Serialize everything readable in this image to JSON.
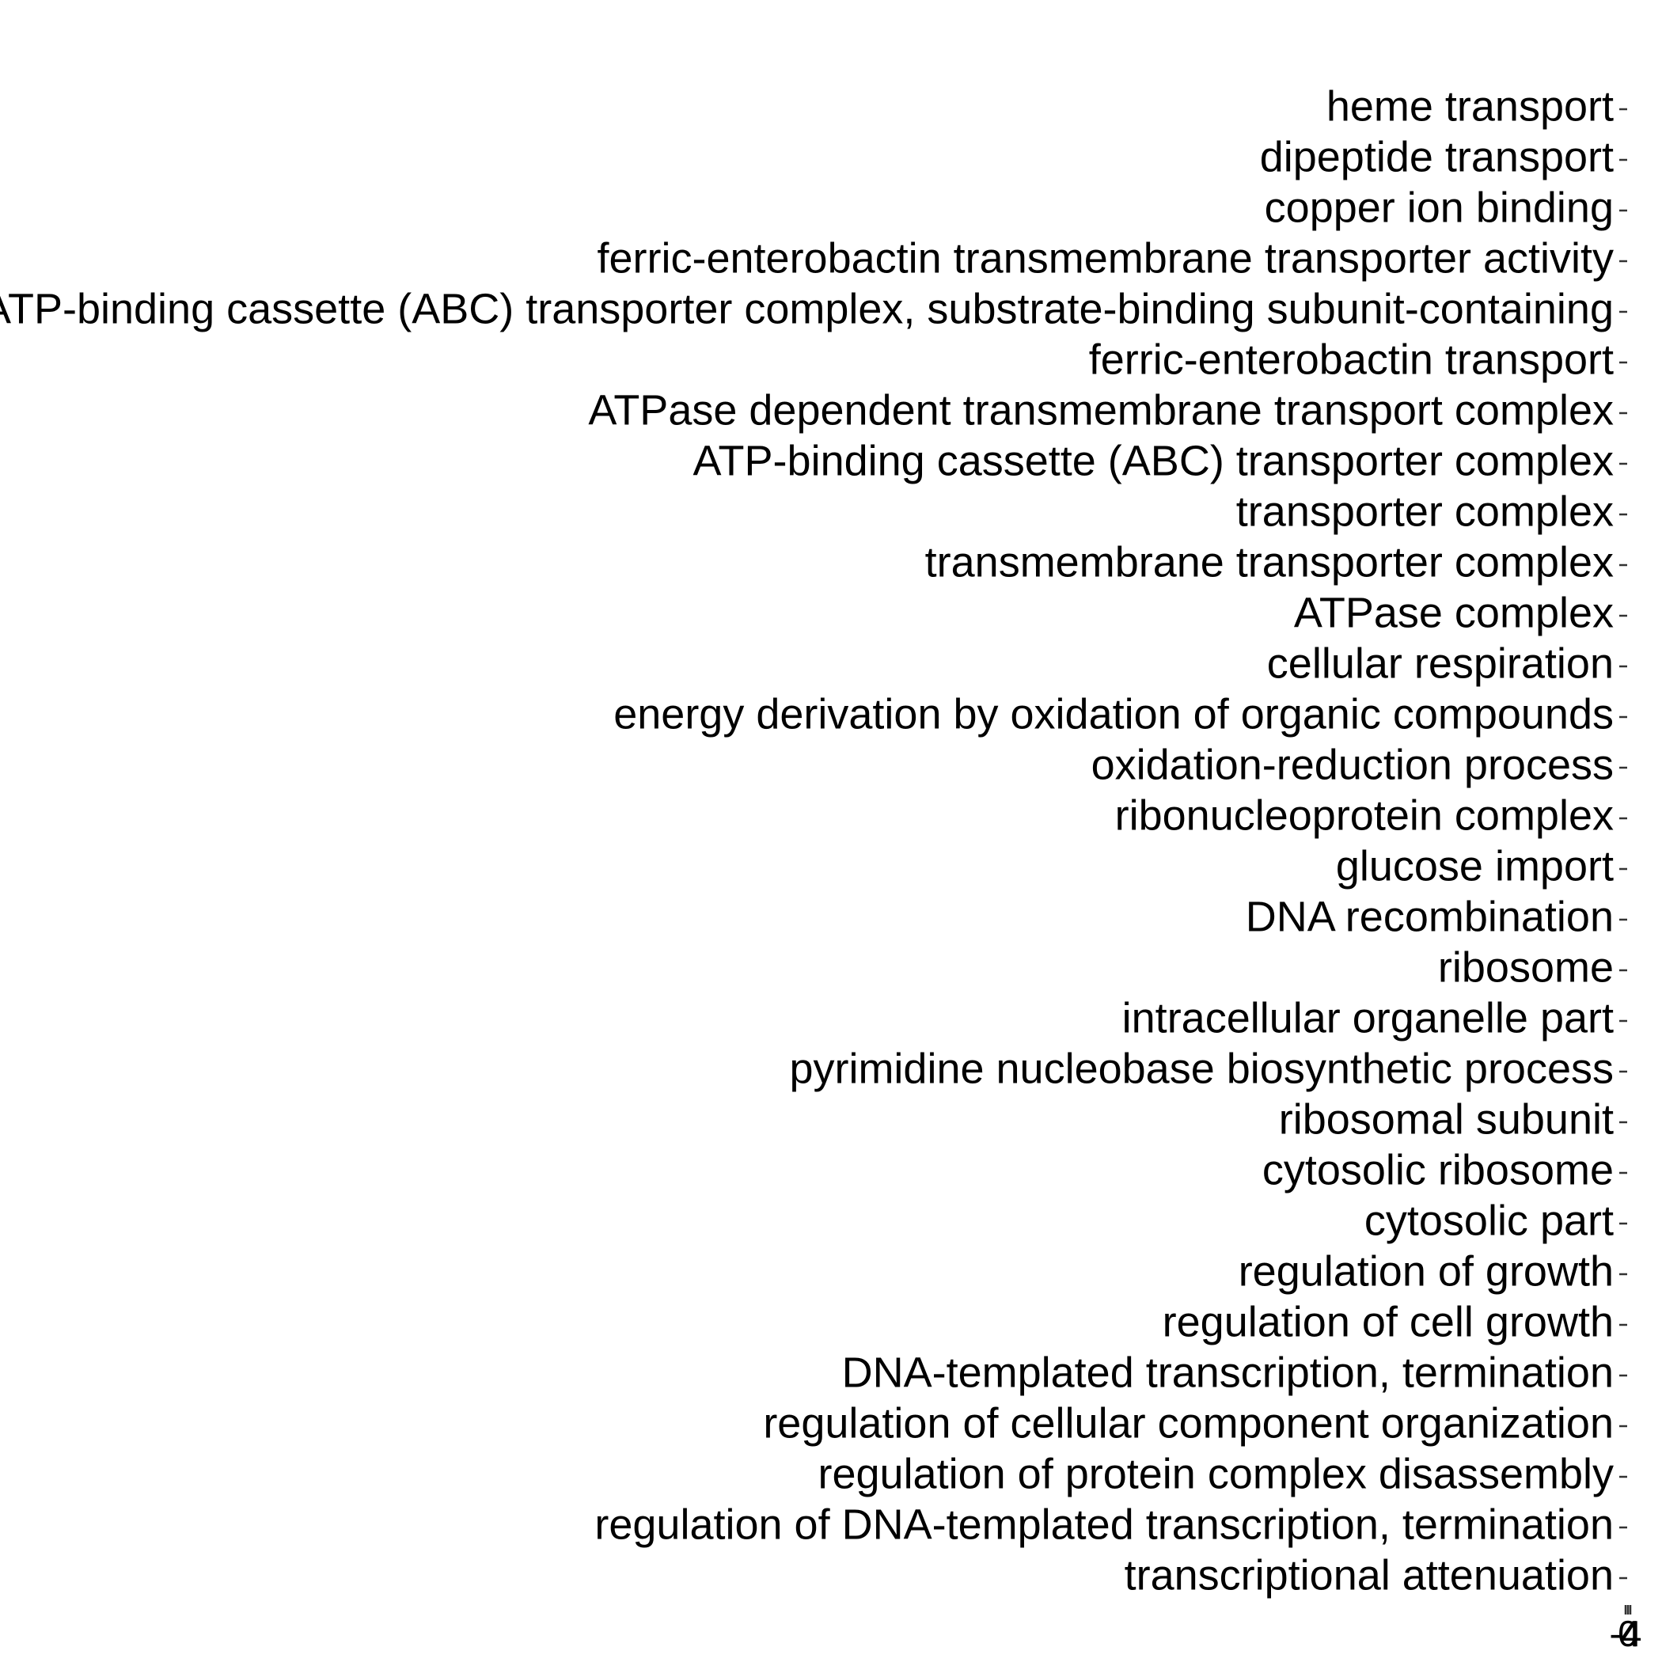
{
  "chart_data": {
    "type": "bar",
    "categories": [
      "heme transport",
      "dipeptide transport",
      "copper ion binding",
      "ferric-enterobactin transmembrane transporter activity",
      "ATP-binding cassette (ABC) transporter complex, substrate-binding subunit-containing",
      "ferric-enterobactin transport",
      "ATPase dependent transmembrane transport complex",
      "ATP-binding cassette (ABC) transporter complex",
      "transporter complex",
      "transmembrane transporter complex",
      "ATPase complex",
      "cellular respiration",
      "energy derivation by oxidation of organic compounds",
      "oxidation-reduction process",
      "ribonucleoprotein complex",
      "glucose import",
      "DNA recombination",
      "ribosome",
      "intracellular organelle part",
      "pyrimidine nucleobase biosynthetic process",
      "ribosomal subunit",
      "cytosolic ribosome",
      "cytosolic part",
      "regulation of growth",
      "regulation of cell growth",
      "DNA-templated transcription, termination",
      "regulation of cellular component organization",
      "regulation of protein complex disassembly",
      "regulation of DNA-templated transcription, termination",
      "transcriptional attenuation"
    ],
    "xlim": [
      -4,
      4
    ],
    "xticks": [
      -4,
      0,
      4
    ]
  }
}
